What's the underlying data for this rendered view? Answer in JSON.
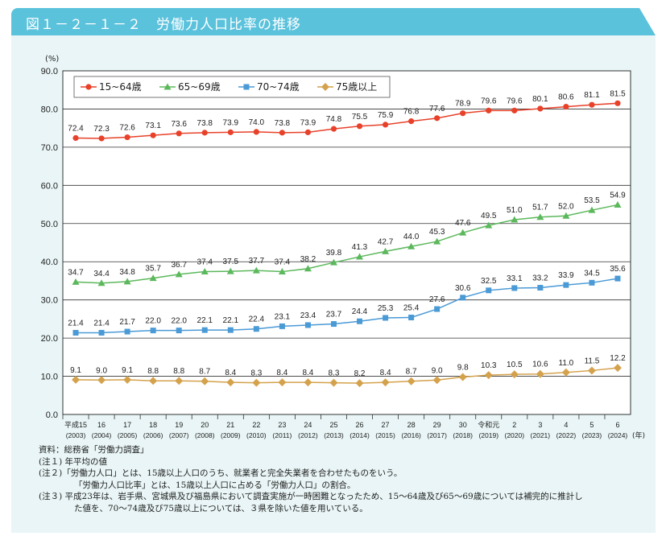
{
  "header": {
    "title": "図１－２－１－２　労働力人口比率の推移"
  },
  "chart_data": {
    "type": "line",
    "ylabel": "(%)",
    "xlabel": "(年)",
    "ylim": [
      0,
      90
    ],
    "yticks": [
      "0.0",
      "10.0",
      "20.0",
      "30.0",
      "40.0",
      "50.0",
      "60.0",
      "70.0",
      "80.0",
      "90.0"
    ],
    "grid": true,
    "legend": "top-left",
    "categories": [
      {
        "era": "平成15",
        "year": "(2003)"
      },
      {
        "era": "16",
        "year": "(2004)"
      },
      {
        "era": "17",
        "year": "(2005)"
      },
      {
        "era": "18",
        "year": "(2006)"
      },
      {
        "era": "19",
        "year": "(2007)"
      },
      {
        "era": "20",
        "year": "(2008)"
      },
      {
        "era": "21",
        "year": "(2009)"
      },
      {
        "era": "22",
        "year": "(2010)"
      },
      {
        "era": "23",
        "year": "(2011)"
      },
      {
        "era": "24",
        "year": "(2012)"
      },
      {
        "era": "25",
        "year": "(2013)"
      },
      {
        "era": "26",
        "year": "(2014)"
      },
      {
        "era": "27",
        "year": "(2015)"
      },
      {
        "era": "28",
        "year": "(2016)"
      },
      {
        "era": "29",
        "year": "(2017)"
      },
      {
        "era": "30",
        "year": "(2018)"
      },
      {
        "era": "令和元",
        "year": "(2019)"
      },
      {
        "era": "2",
        "year": "(2020)"
      },
      {
        "era": "3",
        "year": "(2021)"
      },
      {
        "era": "4",
        "year": "(2022)"
      },
      {
        "era": "5",
        "year": "(2023)"
      },
      {
        "era": "6",
        "year": "(2024)"
      }
    ],
    "series": [
      {
        "name": "15~64歳",
        "color": "#e8412a",
        "marker": "circle",
        "values": [
          72.4,
          72.3,
          72.6,
          73.1,
          73.6,
          73.8,
          73.9,
          74.0,
          73.8,
          73.9,
          74.8,
          75.5,
          75.9,
          76.8,
          77.6,
          78.9,
          79.6,
          79.6,
          80.1,
          80.6,
          81.1,
          81.5
        ]
      },
      {
        "name": "65~69歳",
        "color": "#5cb85c",
        "marker": "triangle",
        "values": [
          34.7,
          34.4,
          34.8,
          35.7,
          36.7,
          37.4,
          37.5,
          37.7,
          37.4,
          38.2,
          39.8,
          41.3,
          42.7,
          44.0,
          45.3,
          47.6,
          49.5,
          51.0,
          51.7,
          52.0,
          53.5,
          54.9
        ]
      },
      {
        "name": "70~74歳",
        "color": "#4a9ad6",
        "marker": "square",
        "values": [
          21.4,
          21.4,
          21.7,
          22.0,
          22.0,
          22.1,
          22.1,
          22.4,
          23.1,
          23.4,
          23.7,
          24.4,
          25.3,
          25.4,
          27.6,
          30.6,
          32.5,
          33.1,
          33.2,
          33.9,
          34.5,
          35.6
        ]
      },
      {
        "name": "75歳以上",
        "color": "#d4a24c",
        "marker": "diamond",
        "values": [
          9.1,
          9.0,
          9.1,
          8.8,
          8.8,
          8.7,
          8.4,
          8.3,
          8.4,
          8.4,
          8.3,
          8.2,
          8.4,
          8.7,
          9.0,
          9.8,
          10.3,
          10.5,
          10.6,
          11.0,
          11.5,
          12.2
        ]
      }
    ]
  },
  "notes": [
    "資料：総務省「労働力調査」",
    "(注１) 年平均の値",
    "(注２)「労働力人口」とは、15歳以上人口のうち、就業者と完全失業者を合わせたものをいう。",
    "「労働力人口比率」とは、15歳以上人口に占める「労働力人口」の割合。",
    "(注３) 平成23年は、岩手県、宮城県及び福島県において調査実施が一時困難となったため、15～64歳及び65～69歳については補完的に推計し",
    "た値を、70～74歳及び75歳以上については、３県を除いた値を用いている。"
  ]
}
